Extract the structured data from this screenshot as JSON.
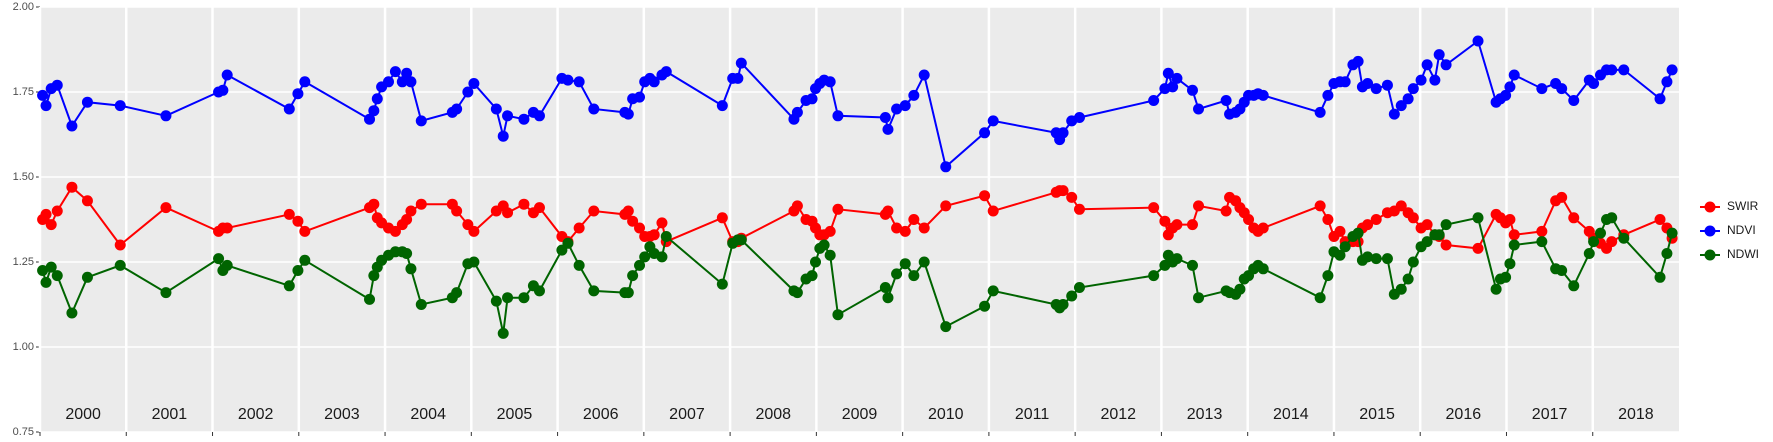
{
  "chart_data": {
    "type": "line",
    "x": [
      2000.03,
      2000.07,
      2000.13,
      2000.2,
      2000.37,
      2000.55,
      2000.93,
      2001.46,
      2002.07,
      2002.12,
      2002.17,
      2002.89,
      2002.99,
      2003.07,
      2003.82,
      2003.87,
      2003.91,
      2003.96,
      2004.04,
      2004.12,
      2004.2,
      2004.25,
      2004.3,
      2004.42,
      2004.78,
      2004.83,
      2004.96,
      2005.03,
      2005.29,
      2005.37,
      2005.42,
      2005.61,
      2005.72,
      2005.79,
      2006.05,
      2006.12,
      2006.25,
      2006.42,
      2006.78,
      2006.82,
      2006.87,
      2006.95,
      2007.01,
      2007.07,
      2007.12,
      2007.21,
      2007.26,
      2007.91,
      2008.03,
      2008.09,
      2008.13,
      2008.74,
      2008.78,
      2008.88,
      2008.95,
      2008.99,
      2009.04,
      2009.09,
      2009.16,
      2009.25,
      2009.8,
      2009.83,
      2009.93,
      2010.03,
      2010.13,
      2010.25,
      2010.5,
      2010.95,
      2011.05,
      2011.78,
      2011.82,
      2011.86,
      2011.96,
      2012.05,
      2012.91,
      2013.04,
      2013.08,
      2013.13,
      2013.18,
      2013.36,
      2013.43,
      2013.75,
      2013.79,
      2013.86,
      2013.91,
      2013.96,
      2014.01,
      2014.07,
      2014.12,
      2014.18,
      2014.84,
      2014.93,
      2015.0,
      2015.07,
      2015.13,
      2015.22,
      2015.28,
      2015.33,
      2015.39,
      2015.49,
      2015.62,
      2015.7,
      2015.78,
      2015.86,
      2015.92,
      2016.01,
      2016.08,
      2016.17,
      2016.22,
      2016.3,
      2016.67,
      2016.88,
      2016.93,
      2016.99,
      2017.04,
      2017.09,
      2017.41,
      2017.57,
      2017.64,
      2017.78,
      2017.96,
      2018.01,
      2018.09,
      2018.16,
      2018.22,
      2018.36,
      2018.78,
      2018.86,
      2018.92
    ],
    "series": [
      {
        "name": "SWIR",
        "color": "#ff0000",
        "values": [
          1.375,
          1.39,
          1.36,
          1.4,
          1.47,
          1.43,
          1.3,
          1.41,
          1.34,
          1.35,
          1.35,
          1.39,
          1.37,
          1.34,
          1.41,
          1.42,
          1.38,
          1.365,
          1.35,
          1.34,
          1.36,
          1.375,
          1.4,
          1.42,
          1.42,
          1.4,
          1.36,
          1.34,
          1.4,
          1.415,
          1.395,
          1.42,
          1.395,
          1.41,
          1.325,
          1.31,
          1.35,
          1.4,
          1.39,
          1.4,
          1.37,
          1.35,
          1.325,
          1.325,
          1.33,
          1.365,
          1.31,
          1.38,
          1.31,
          1.31,
          1.32,
          1.4,
          1.415,
          1.375,
          1.37,
          1.35,
          1.33,
          1.33,
          1.34,
          1.405,
          1.39,
          1.4,
          1.35,
          1.34,
          1.375,
          1.35,
          1.415,
          1.445,
          1.4,
          1.455,
          1.46,
          1.46,
          1.44,
          1.405,
          1.41,
          1.37,
          1.33,
          1.35,
          1.36,
          1.36,
          1.415,
          1.4,
          1.44,
          1.43,
          1.41,
          1.395,
          1.375,
          1.35,
          1.34,
          1.35,
          1.415,
          1.375,
          1.325,
          1.34,
          1.31,
          1.31,
          1.31,
          1.35,
          1.36,
          1.375,
          1.395,
          1.4,
          1.415,
          1.395,
          1.38,
          1.35,
          1.36,
          1.33,
          1.325,
          1.3,
          1.29,
          1.39,
          1.38,
          1.365,
          1.375,
          1.33,
          1.34,
          1.43,
          1.44,
          1.38,
          1.34,
          1.32,
          1.305,
          1.29,
          1.31,
          1.33,
          1.375,
          1.35,
          1.32
        ]
      },
      {
        "name": "NDVI",
        "color": "#0000ff",
        "values": [
          1.74,
          1.71,
          1.76,
          1.77,
          1.65,
          1.72,
          1.71,
          1.68,
          1.75,
          1.755,
          1.8,
          1.7,
          1.745,
          1.78,
          1.67,
          1.695,
          1.73,
          1.765,
          1.78,
          1.81,
          1.78,
          1.805,
          1.78,
          1.665,
          1.69,
          1.7,
          1.75,
          1.775,
          1.7,
          1.62,
          1.68,
          1.67,
          1.69,
          1.68,
          1.79,
          1.785,
          1.78,
          1.7,
          1.69,
          1.685,
          1.73,
          1.735,
          1.78,
          1.79,
          1.78,
          1.8,
          1.81,
          1.71,
          1.79,
          1.79,
          1.835,
          1.67,
          1.69,
          1.725,
          1.73,
          1.76,
          1.775,
          1.785,
          1.78,
          1.68,
          1.675,
          1.64,
          1.7,
          1.71,
          1.74,
          1.8,
          1.53,
          1.63,
          1.665,
          1.63,
          1.61,
          1.63,
          1.665,
          1.675,
          1.725,
          1.76,
          1.805,
          1.765,
          1.79,
          1.755,
          1.7,
          1.725,
          1.685,
          1.69,
          1.7,
          1.72,
          1.74,
          1.74,
          1.745,
          1.74,
          1.69,
          1.74,
          1.775,
          1.78,
          1.78,
          1.83,
          1.84,
          1.765,
          1.775,
          1.76,
          1.77,
          1.685,
          1.71,
          1.73,
          1.76,
          1.785,
          1.83,
          1.785,
          1.86,
          1.83,
          1.9,
          1.72,
          1.73,
          1.74,
          1.765,
          1.8,
          1.76,
          1.775,
          1.76,
          1.725,
          1.785,
          1.775,
          1.8,
          1.815,
          1.815,
          1.815,
          1.73,
          1.78,
          1.815
        ]
      },
      {
        "name": "NDWI",
        "color": "#006400",
        "values": [
          1.225,
          1.19,
          1.235,
          1.21,
          1.1,
          1.205,
          1.24,
          1.16,
          1.26,
          1.225,
          1.24,
          1.18,
          1.225,
          1.255,
          1.14,
          1.21,
          1.235,
          1.255,
          1.27,
          1.28,
          1.28,
          1.275,
          1.23,
          1.125,
          1.145,
          1.16,
          1.245,
          1.25,
          1.135,
          1.04,
          1.145,
          1.145,
          1.18,
          1.165,
          1.285,
          1.305,
          1.24,
          1.165,
          1.16,
          1.16,
          1.21,
          1.24,
          1.265,
          1.295,
          1.275,
          1.265,
          1.325,
          1.185,
          1.305,
          1.315,
          1.315,
          1.165,
          1.16,
          1.2,
          1.21,
          1.25,
          1.29,
          1.3,
          1.27,
          1.095,
          1.175,
          1.145,
          1.215,
          1.245,
          1.21,
          1.25,
          1.06,
          1.12,
          1.165,
          1.125,
          1.115,
          1.125,
          1.15,
          1.175,
          1.21,
          1.24,
          1.27,
          1.25,
          1.26,
          1.24,
          1.145,
          1.165,
          1.16,
          1.155,
          1.17,
          1.2,
          1.21,
          1.23,
          1.24,
          1.23,
          1.145,
          1.21,
          1.28,
          1.27,
          1.295,
          1.325,
          1.335,
          1.255,
          1.265,
          1.26,
          1.26,
          1.155,
          1.17,
          1.2,
          1.25,
          1.295,
          1.31,
          1.33,
          1.33,
          1.36,
          1.38,
          1.17,
          1.2,
          1.205,
          1.245,
          1.3,
          1.31,
          1.23,
          1.225,
          1.18,
          1.275,
          1.31,
          1.335,
          1.375,
          1.38,
          1.32,
          1.205,
          1.275,
          1.335
        ]
      }
    ],
    "xlim": [
      2000,
      2019
    ],
    "xticks": [
      2000,
      2001,
      2002,
      2003,
      2004,
      2005,
      2006,
      2007,
      2008,
      2009,
      2010,
      2011,
      2012,
      2013,
      2014,
      2015,
      2016,
      2017,
      2018
    ],
    "ylim": [
      0.75,
      2.0
    ],
    "yticks": [
      0.75,
      {
        "value": 1.0,
        "label": "1.00"
      },
      1.25,
      {
        "value": 1.5,
        "label": "1.50"
      },
      1.75,
      {
        "value": 2.0,
        "label": "2.00"
      }
    ],
    "grid": true,
    "legend": "right"
  }
}
